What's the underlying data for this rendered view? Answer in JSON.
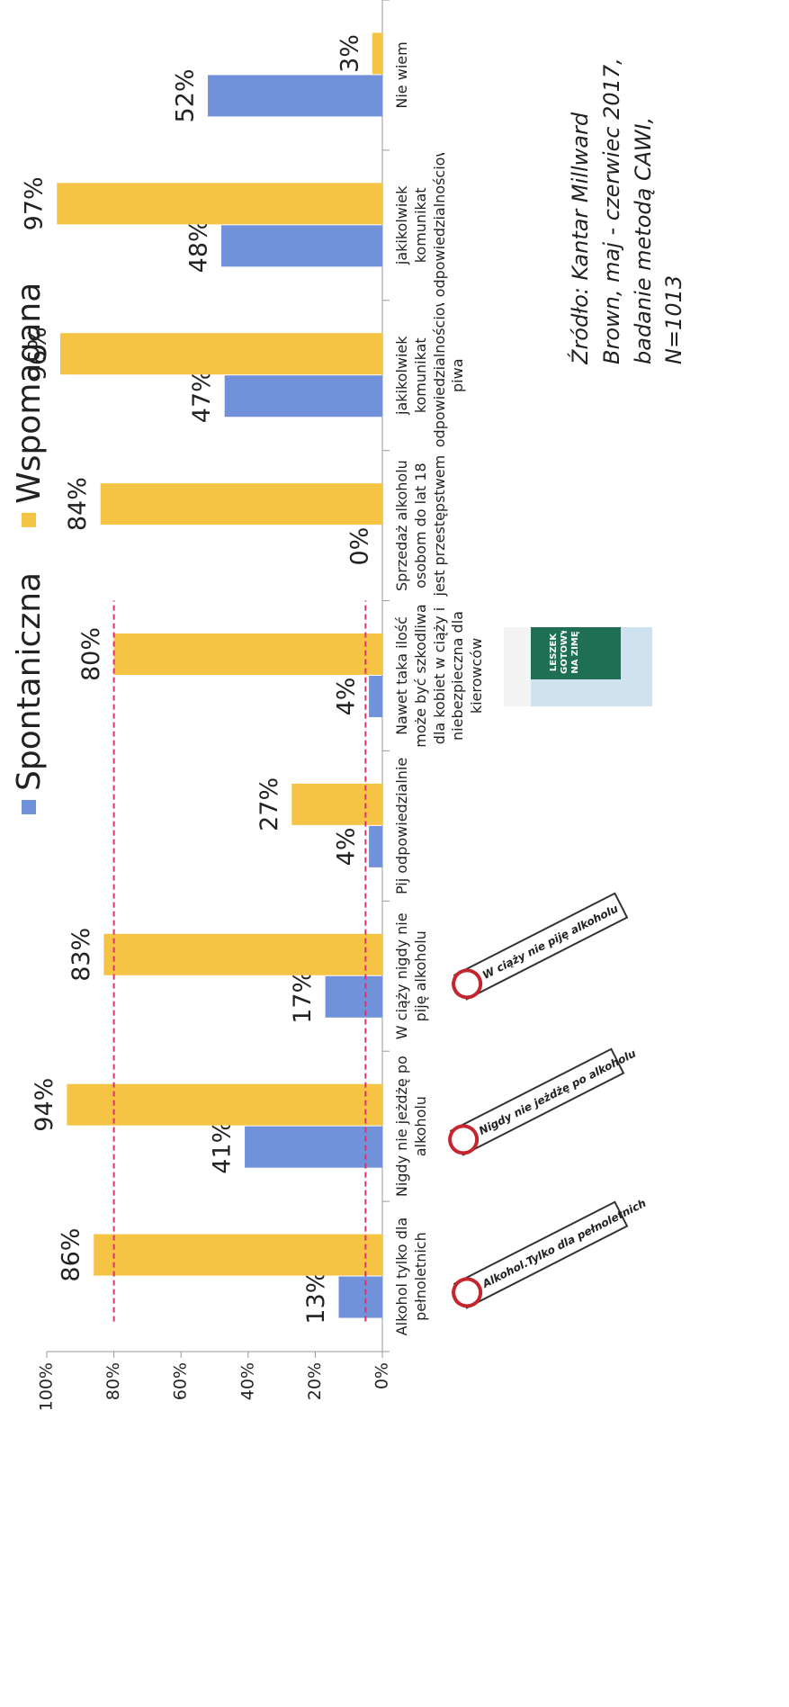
{
  "chart_data": {
    "type": "bar",
    "categories": [
      "Alkohol tylko dla pełnoletnich",
      "Nigdy nie jeżdżę po alkoholu",
      "W ciąży nigdy nie piję alkoholu",
      "Pij odpowiedzialnie",
      "Nawet taka ilość może być szkodliwa dla kobiet w ciąży i niebezpieczna dla kierowców",
      "Sprzedaż alkoholu osobom do lat 18 jest przestępstwem",
      "jakikolwiek komunikat odpowiedzialnościowy piwa",
      "jakikolwiek komunikat odpowiedzialnościowy",
      "Nie wiem"
    ],
    "series": [
      {
        "name": "Spontaniczna",
        "color": "#7191db",
        "values": [
          13,
          41,
          17,
          4,
          4,
          0,
          47,
          48,
          52
        ],
        "value_labels": [
          "13%",
          "41%",
          "17%",
          "4%",
          "4%",
          "0%",
          "47%",
          "48%",
          "52%"
        ]
      },
      {
        "name": "Wspomagana",
        "color": "#f6c445",
        "values": [
          86,
          94,
          83,
          27,
          80,
          84,
          96,
          97,
          3
        ],
        "value_labels": [
          "86%",
          "94%",
          "83%",
          "27%",
          "80%",
          "84%",
          "96%",
          "97%",
          "3%"
        ]
      }
    ],
    "ylim": [
      0,
      100
    ],
    "yticks": [
      {
        "value": 0,
        "label": "0%"
      },
      {
        "value": 20,
        "label": "20%"
      },
      {
        "value": 40,
        "label": "40%"
      },
      {
        "value": 60,
        "label": "60%"
      },
      {
        "value": 80,
        "label": "80%"
      },
      {
        "value": 100,
        "label": "100%"
      }
    ],
    "reference_lines": [
      {
        "value": 80,
        "color": "#e0306a"
      },
      {
        "value": 5,
        "color": "#e0306a"
      }
    ],
    "source": "Źródło: Kantar Millward Brown, maj - czerwiec 2017, badanie metodą CAWI, N=1013",
    "badges": [
      "Alkohol.Tylko dla pełnoletnich",
      "Nigdy nie jeżdżę po alkoholu",
      "W ciąży nie piję alkoholu"
    ],
    "poster_text": "LESZEK GOTOWY NA ZIMĘ"
  }
}
